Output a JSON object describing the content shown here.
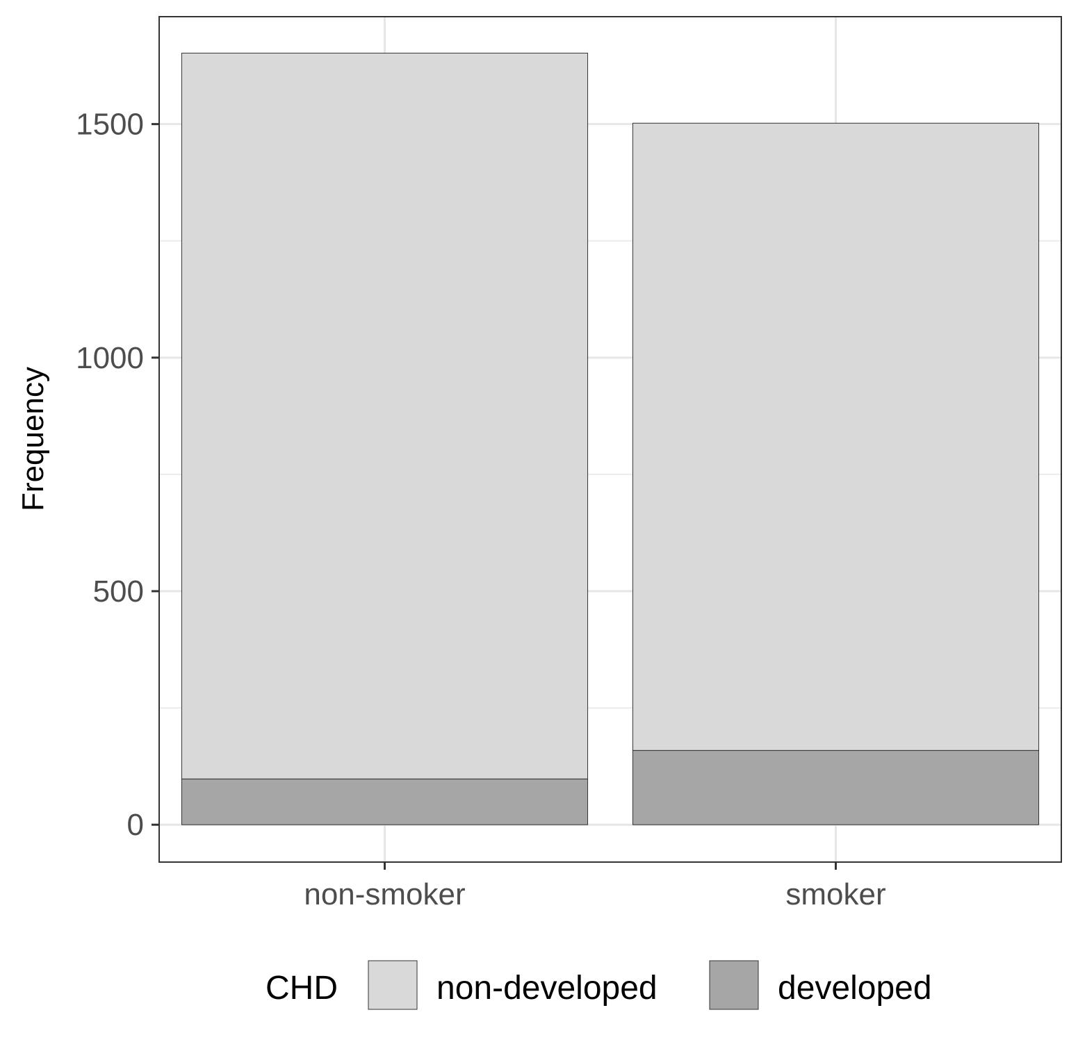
{
  "chart_data": {
    "type": "bar",
    "stacked": true,
    "categories": [
      "non-smoker",
      "smoker"
    ],
    "series": [
      {
        "name": "developed",
        "values": [
          98,
          159
        ],
        "color": "#a6a6a6"
      },
      {
        "name": "non-developed",
        "values": [
          1554,
          1343
        ],
        "color": "#d9d9d9"
      }
    ],
    "title": "",
    "xlabel": "",
    "ylabel": "Frequency",
    "ylim": [
      -80,
      1730
    ],
    "yticks": [
      0,
      500,
      1000,
      1500
    ],
    "ytick_labels": [
      "0",
      "500",
      "1000",
      "1500"
    ],
    "grid": true,
    "legend": {
      "title": "CHD",
      "position": "bottom",
      "entries": [
        {
          "label": "non-developed",
          "color": "#d9d9d9"
        },
        {
          "label": "developed",
          "color": "#a6a6a6"
        }
      ]
    }
  }
}
